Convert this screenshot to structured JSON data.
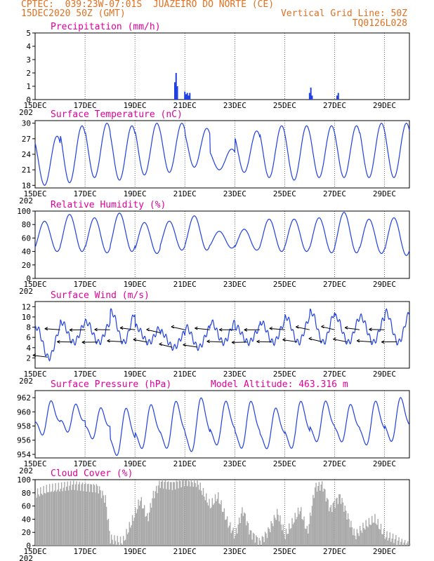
{
  "header": {
    "line1_left": "CPTEC:  039:23W-07:01S  JUAZEIRO DO NORTE (CE)",
    "line2_left": "15DEC2020 50Z (GMT)",
    "line2_right": "Vertical Grid Line: 50Z",
    "line3_right": "TQ0126L028"
  },
  "x_ticks": [
    "15DEC",
    "17DEC",
    "19DEC",
    "21DEC",
    "23DEC",
    "25DEC",
    "27DEC",
    "29DEC"
  ],
  "x_sublabel": "202",
  "colors": {
    "line": "#2040e0",
    "bar": "#2040e0",
    "cloud": "#a8a8a8",
    "title": "#e0009a",
    "header": "#e07020"
  },
  "chart_data": [
    {
      "type": "bar",
      "title": "Precipitation (mm/h)",
      "ylim": [
        0,
        5
      ],
      "yticks": [
        0,
        1,
        2,
        3,
        4,
        5
      ],
      "x_range_days": [
        15,
        30
      ],
      "events": [
        {
          "day": 20.6,
          "value": 1.3
        },
        {
          "day": 20.65,
          "value": 2.0
        },
        {
          "day": 20.7,
          "value": 1.0
        },
        {
          "day": 21.0,
          "value": 0.6
        },
        {
          "day": 21.05,
          "value": 0.4
        },
        {
          "day": 21.1,
          "value": 0.5
        },
        {
          "day": 21.15,
          "value": 0.3
        },
        {
          "day": 21.2,
          "value": 0.5
        },
        {
          "day": 26.0,
          "value": 0.5
        },
        {
          "day": 26.05,
          "value": 0.9
        },
        {
          "day": 26.1,
          "value": 0.3
        },
        {
          "day": 27.1,
          "value": 0.3
        },
        {
          "day": 27.15,
          "value": 0.5
        }
      ]
    },
    {
      "type": "line",
      "title": "Surface Temperature (nC)",
      "ylim": [
        17.5,
        30.5
      ],
      "yticks": [
        18,
        21,
        24,
        27,
        30
      ],
      "x_range_days": [
        15,
        30
      ],
      "daily_max": [
        27.5,
        29.5,
        30,
        29.5,
        30,
        30,
        29,
        25,
        28.5,
        29.5,
        29.5,
        29.5,
        29.5,
        30,
        30,
        30
      ],
      "daily_min": [
        18,
        18.5,
        19.5,
        19,
        20,
        20.5,
        21.5,
        21,
        20.5,
        19.5,
        19,
        19.5,
        19.5,
        19.5,
        19.5,
        20
      ]
    },
    {
      "type": "line",
      "title": "Relative Humidity (%)",
      "ylim": [
        0,
        100
      ],
      "yticks": [
        0,
        20,
        40,
        60,
        80,
        100
      ],
      "x_range_days": [
        15,
        30
      ],
      "daily_max": [
        85,
        95,
        90,
        97,
        83,
        85,
        93,
        70,
        73,
        88,
        88,
        90,
        98,
        88,
        90,
        90
      ],
      "daily_min": [
        40,
        40,
        38,
        40,
        37,
        42,
        42,
        45,
        42,
        40,
        40,
        38,
        38,
        37,
        34,
        35
      ]
    },
    {
      "type": "line",
      "title": "Surface Wind (m/s)",
      "ylim": [
        0,
        13
      ],
      "yticks": [
        2,
        4,
        6,
        8,
        10,
        12
      ],
      "x_range_days": [
        15,
        30
      ],
      "daily_max": [
        8,
        9,
        9,
        11,
        8,
        7,
        8,
        9,
        8,
        9,
        10,
        11,
        10,
        10,
        11,
        11
      ],
      "daily_min": [
        2,
        5,
        5,
        5,
        5,
        4,
        4,
        5,
        5,
        5,
        5,
        5,
        5,
        5,
        5,
        5
      ],
      "wind_vectors": "arrows plotted along the speed trace showing direction"
    },
    {
      "type": "line",
      "title": "Surface Pressure (hPa)",
      "annotation": "Model Altitude: 463.316 m",
      "ylim": [
        953.5,
        963
      ],
      "yticks": [
        954,
        956,
        958,
        960,
        962
      ],
      "x_range_days": [
        15,
        30
      ],
      "daily_max": [
        961,
        960.5,
        960,
        960,
        960.5,
        961,
        961.5,
        961,
        961,
        960,
        961,
        961,
        960.5,
        961,
        961.5,
        961
      ],
      "daily_min": [
        957,
        957.5,
        956.5,
        954,
        955,
        955,
        954.5,
        955.5,
        955,
        955,
        955,
        956,
        956,
        955.5,
        956,
        956
      ]
    },
    {
      "type": "area",
      "title": "Cloud Cover (%)",
      "ylim": [
        0,
        100
      ],
      "yticks": [
        0,
        20,
        40,
        60,
        80,
        100
      ],
      "x_range_days": [
        15,
        30
      ],
      "profile": [
        [
          15.0,
          78
        ],
        [
          15.5,
          85
        ],
        [
          16.0,
          88
        ],
        [
          16.5,
          92
        ],
        [
          17.0,
          90
        ],
        [
          17.5,
          88
        ],
        [
          17.8,
          70
        ],
        [
          18.0,
          10
        ],
        [
          18.5,
          5
        ],
        [
          18.9,
          40
        ],
        [
          19.2,
          70
        ],
        [
          19.5,
          40
        ],
        [
          19.7,
          75
        ],
        [
          20.0,
          95
        ],
        [
          20.5,
          92
        ],
        [
          21.0,
          98
        ],
        [
          21.5,
          95
        ],
        [
          22.0,
          60
        ],
        [
          22.3,
          75
        ],
        [
          22.7,
          35
        ],
        [
          23.0,
          15
        ],
        [
          23.3,
          55
        ],
        [
          23.6,
          20
        ],
        [
          24.0,
          5
        ],
        [
          24.3,
          20
        ],
        [
          24.7,
          50
        ],
        [
          25.0,
          15
        ],
        [
          25.3,
          35
        ],
        [
          25.6,
          55
        ],
        [
          25.9,
          20
        ],
        [
          26.2,
          88
        ],
        [
          26.5,
          92
        ],
        [
          26.8,
          55
        ],
        [
          27.2,
          75
        ],
        [
          27.5,
          45
        ],
        [
          27.8,
          15
        ],
        [
          28.2,
          30
        ],
        [
          28.6,
          40
        ],
        [
          29.0,
          15
        ],
        [
          29.4,
          10
        ],
        [
          29.6,
          5
        ],
        [
          30.0,
          0
        ]
      ]
    }
  ]
}
